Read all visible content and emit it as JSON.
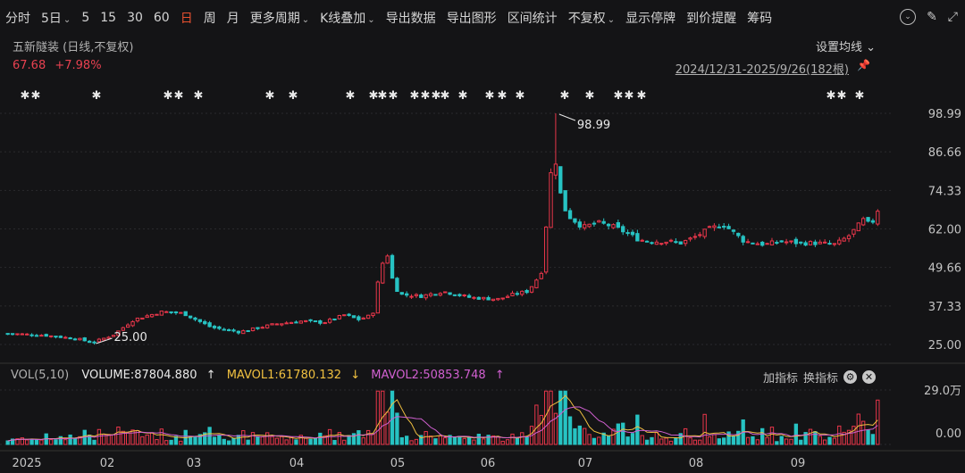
{
  "toolbar": {
    "items": [
      {
        "label": "分时",
        "dropdown": false,
        "active": false
      },
      {
        "label": "5日",
        "dropdown": true,
        "active": false
      },
      {
        "label": "5",
        "dropdown": false,
        "active": false
      },
      {
        "label": "15",
        "dropdown": false,
        "active": false
      },
      {
        "label": "30",
        "dropdown": false,
        "active": false
      },
      {
        "label": "60",
        "dropdown": false,
        "active": false
      },
      {
        "label": "日",
        "dropdown": false,
        "active": true
      },
      {
        "label": "周",
        "dropdown": false,
        "active": false
      },
      {
        "label": "月",
        "dropdown": false,
        "active": false
      },
      {
        "label": "更多周期",
        "dropdown": true,
        "active": false
      },
      {
        "label": "K线叠加",
        "dropdown": true,
        "active": false
      },
      {
        "label": "导出数据",
        "dropdown": false,
        "active": false
      },
      {
        "label": "导出图形",
        "dropdown": false,
        "active": false
      },
      {
        "label": "区间统计",
        "dropdown": false,
        "active": false
      },
      {
        "label": "不复权",
        "dropdown": true,
        "active": false
      },
      {
        "label": "显示停牌",
        "dropdown": false,
        "active": false
      },
      {
        "label": "到价提醒",
        "dropdown": false,
        "active": false
      },
      {
        "label": "筹码",
        "dropdown": false,
        "active": false
      }
    ],
    "more_icon": "chevron-down-circle-icon",
    "fullscreen_icon": "expand-icon",
    "collapse_icon": "shrink-icon"
  },
  "header": {
    "title": "五新隧装 (日线,不复权)",
    "price": "67.68",
    "change": "+7.98%",
    "settings_label": "设置均线",
    "range_label": "2024/12/31-2025/9/26(182根)"
  },
  "volume_header": {
    "label": "VOL(5,10)",
    "volume": "VOLUME:87804.880",
    "volume_arrow": "↑",
    "mavol1": "MAVOL1:61780.132",
    "mavol1_arrow": "↓",
    "mavol2": "MAVOL2:50853.748",
    "mavol2_arrow": "↑",
    "add_indicator": "加指标",
    "switch_indicator": "换指标"
  },
  "chart_data": {
    "type": "candlestick",
    "price_ticks": [
      "98.99",
      "86.66",
      "74.33",
      "62.00",
      "49.66",
      "37.33",
      "25.00"
    ],
    "price_range": [
      25.0,
      98.99
    ],
    "volume_ticks": [
      "29.0万",
      "0.00"
    ],
    "volume_range": [
      0,
      290000
    ],
    "x_ticks": [
      "2025",
      "02",
      "03",
      "04",
      "05",
      "06",
      "07",
      "08",
      "09"
    ],
    "annotations": [
      {
        "text": "98.99",
        "type": "high"
      },
      {
        "text": "25.00",
        "type": "low"
      }
    ],
    "up_color": "#e8364a",
    "down_color": "#27c3c3",
    "ma_colors": [
      "#f0c040",
      "#d060d0"
    ],
    "close_anchors": [
      [
        0,
        28.5
      ],
      [
        10,
        28.0
      ],
      [
        20,
        26.8
      ],
      [
        24,
        25.6
      ],
      [
        30,
        28.0
      ],
      [
        36,
        33.0
      ],
      [
        44,
        35.5
      ],
      [
        50,
        35.0
      ],
      [
        58,
        30.5
      ],
      [
        66,
        29.0
      ],
      [
        70,
        30.0
      ],
      [
        76,
        31.5
      ],
      [
        84,
        32.5
      ],
      [
        90,
        32.0
      ],
      [
        96,
        34.5
      ],
      [
        100,
        33.0
      ],
      [
        104,
        34.5
      ],
      [
        106,
        48.0
      ],
      [
        108,
        55.0
      ],
      [
        110,
        44.0
      ],
      [
        112,
        41.0
      ],
      [
        118,
        40.5
      ],
      [
        124,
        42.0
      ],
      [
        128,
        41.0
      ],
      [
        132,
        40.0
      ],
      [
        140,
        39.5
      ],
      [
        144,
        41.0
      ],
      [
        148,
        42.0
      ],
      [
        150,
        44.5
      ],
      [
        152,
        48.0
      ],
      [
        153,
        52.0
      ],
      [
        154,
        76.0
      ],
      [
        156,
        85.0
      ],
      [
        158,
        70.0
      ],
      [
        160,
        66.0
      ],
      [
        164,
        62.5
      ],
      [
        168,
        64.0
      ],
      [
        172,
        63.0
      ],
      [
        176,
        61.0
      ],
      [
        180,
        58.5
      ],
      [
        184,
        58.0
      ],
      [
        188,
        58.0
      ],
      [
        192,
        57.5
      ],
      [
        196,
        59.5
      ],
      [
        200,
        62.0
      ],
      [
        204,
        63.5
      ],
      [
        210,
        58.0
      ],
      [
        216,
        57.0
      ],
      [
        220,
        58.0
      ],
      [
        226,
        57.5
      ],
      [
        230,
        57.5
      ],
      [
        236,
        57.0
      ],
      [
        240,
        60.0
      ],
      [
        244,
        65.0
      ],
      [
        246,
        63.0
      ],
      [
        248,
        67.68
      ]
    ],
    "candle_count": 182
  }
}
